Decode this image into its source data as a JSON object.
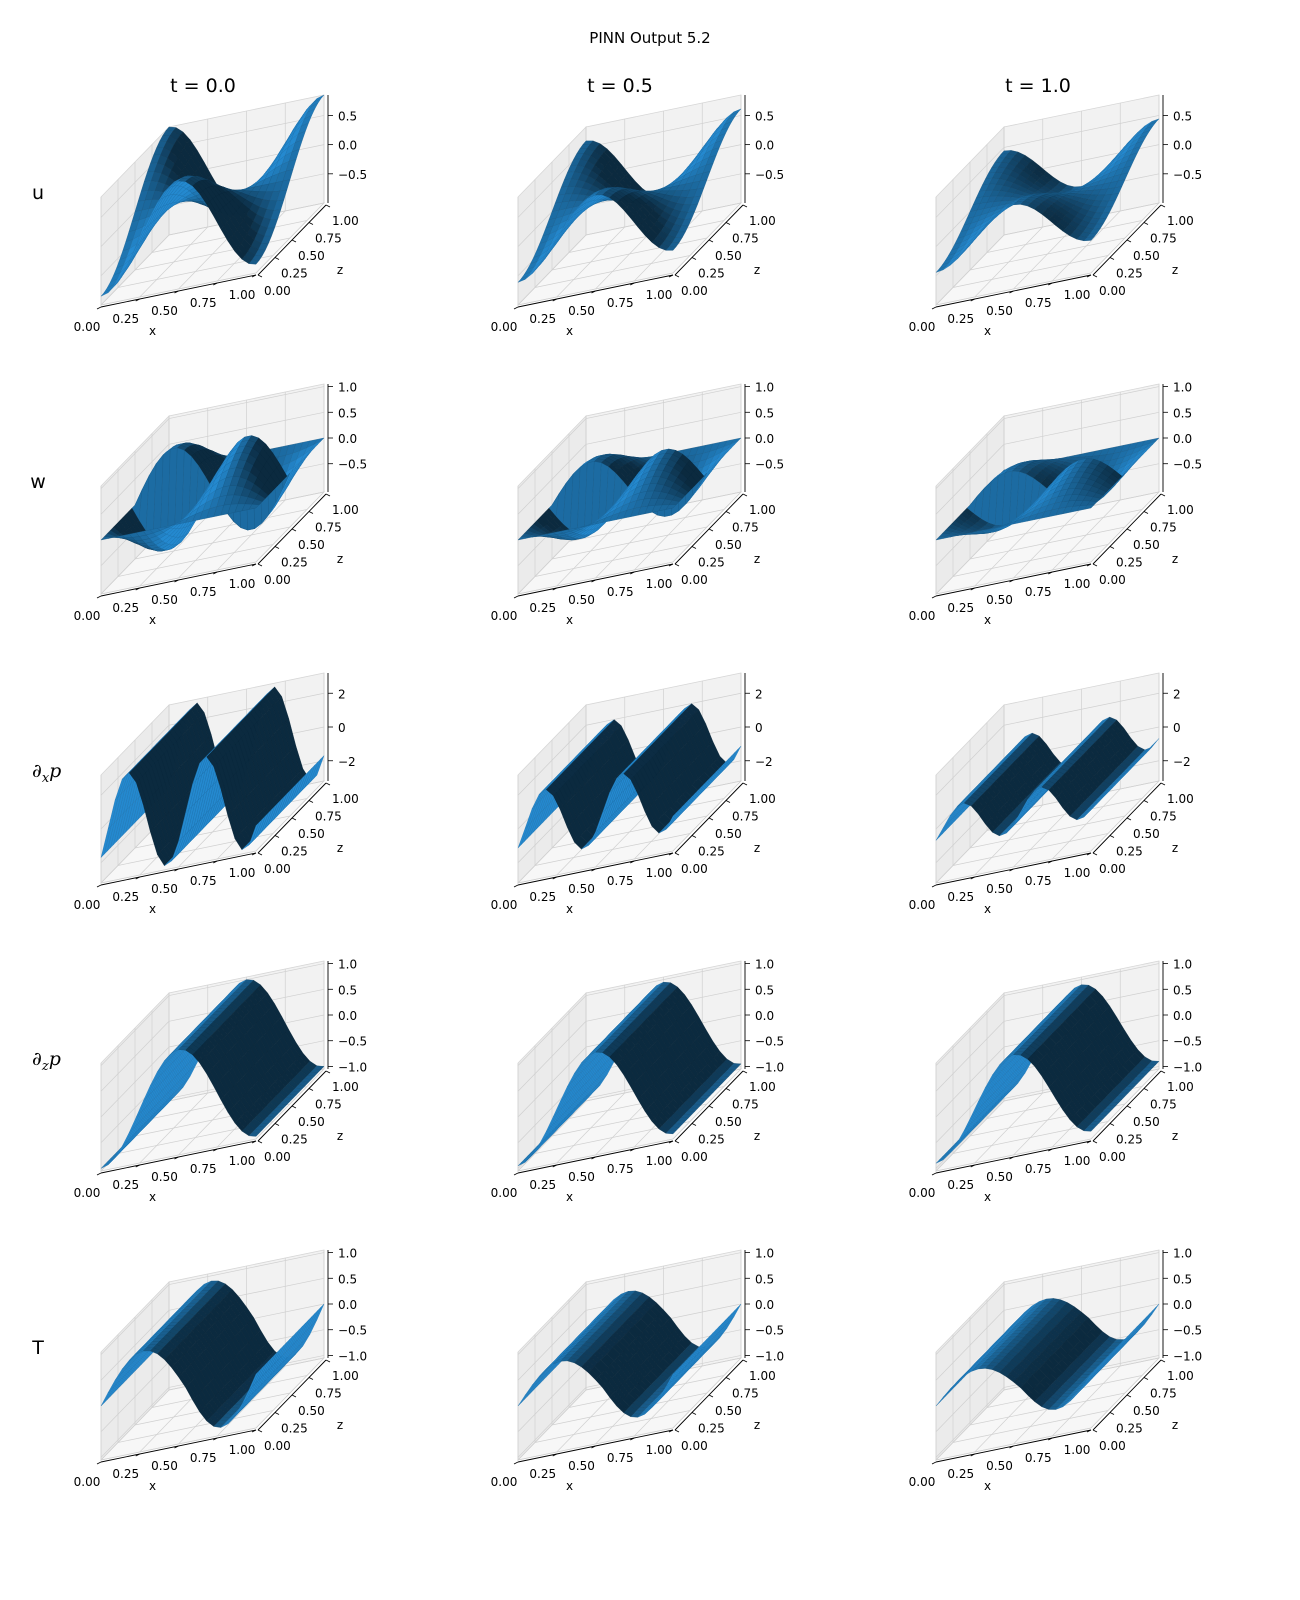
{
  "figure": {
    "title": "PINN Output 5.2",
    "surface_color": "#1f77b4",
    "columns": [
      {
        "label": "t = 0.0",
        "t": 0.0
      },
      {
        "label": "t = 0.5",
        "t": 0.5
      },
      {
        "label": "t = 1.0",
        "t": 1.0
      }
    ],
    "rows": [
      {
        "key": "u",
        "label": "u",
        "italic": false
      },
      {
        "key": "w",
        "label": "w",
        "italic": false
      },
      {
        "key": "dxp",
        "label": "∂",
        "sub": "x",
        "tail": "p",
        "italic": true
      },
      {
        "key": "dzp",
        "label": "∂",
        "sub": "z",
        "tail": "p",
        "italic": true
      },
      {
        "key": "T",
        "label": "T",
        "italic": false
      }
    ]
  },
  "chart_data": [
    {
      "row": "u",
      "type": "surface",
      "xlabel": "x",
      "ylabel": "z",
      "x_ticks": [
        "0.00",
        "0.25",
        "0.50",
        "0.75",
        "1.00"
      ],
      "y_ticks": [
        "0.00",
        "0.25",
        "0.50",
        "0.75",
        "1.00"
      ],
      "z_ticks": [
        {
          "v": 0.5,
          "label": "0.5"
        },
        {
          "v": 0.0,
          "label": "0.0"
        },
        {
          "v": -0.5,
          "label": "−0.5"
        }
      ],
      "zlim": [
        -1.0,
        0.85
      ],
      "amplitude": {
        "t=0.0": 1.0,
        "t=0.5": 0.72,
        "t=1.0": 0.52
      }
    },
    {
      "row": "w",
      "type": "surface",
      "xlabel": "x",
      "ylabel": "z",
      "x_ticks": [
        "0.00",
        "0.25",
        "0.50",
        "0.75",
        "1.00"
      ],
      "y_ticks": [
        "0.00",
        "0.25",
        "0.50",
        "0.75",
        "1.00"
      ],
      "z_ticks": [
        {
          "v": 1.0,
          "label": "1.0"
        },
        {
          "v": 0.5,
          "label": "0.5"
        },
        {
          "v": 0.0,
          "label": "0.0"
        },
        {
          "v": -0.5,
          "label": "−0.5"
        }
      ],
      "zlim": [
        -1.05,
        1.05
      ],
      "amplitude": {
        "t=0.0": 1.0,
        "t=0.5": 0.72,
        "t=1.0": 0.52
      }
    },
    {
      "row": "dxp",
      "type": "surface",
      "xlabel": "x",
      "ylabel": "z",
      "x_ticks": [
        "0.00",
        "0.25",
        "0.50",
        "0.75",
        "1.00"
      ],
      "y_ticks": [
        "0.00",
        "0.25",
        "0.50",
        "0.75",
        "1.00"
      ],
      "z_ticks": [
        {
          "v": 2,
          "label": "2"
        },
        {
          "v": 0,
          "label": "0"
        },
        {
          "v": -2,
          "label": "−2"
        }
      ],
      "zlim": [
        -3.2,
        3.2
      ],
      "amplitude": {
        "t=0.0": 3.0,
        "t=0.5": 2.0,
        "t=1.0": 1.2
      }
    },
    {
      "row": "dzp",
      "type": "surface",
      "xlabel": "x",
      "ylabel": "z",
      "x_ticks": [
        "0.00",
        "0.25",
        "0.50",
        "0.75",
        "1.00"
      ],
      "y_ticks": [
        "0.00",
        "0.25",
        "0.50",
        "0.75",
        "1.00"
      ],
      "z_ticks": [
        {
          "v": 1.0,
          "label": "1.0"
        },
        {
          "v": 0.5,
          "label": "0.5"
        },
        {
          "v": 0.0,
          "label": "0.0"
        },
        {
          "v": -0.5,
          "label": "−0.5"
        },
        {
          "v": -1.0,
          "label": "−1.0"
        }
      ],
      "zlim": [
        -1.05,
        1.05
      ],
      "amplitude": {
        "t=0.0": 1.0,
        "t=0.5": 0.95,
        "t=1.0": 0.9
      }
    },
    {
      "row": "T",
      "type": "surface",
      "xlabel": "x",
      "ylabel": "z",
      "x_ticks": [
        "0.00",
        "0.25",
        "0.50",
        "0.75",
        "1.00"
      ],
      "y_ticks": [
        "0.00",
        "0.25",
        "0.50",
        "0.75",
        "1.00"
      ],
      "z_ticks": [
        {
          "v": 1.0,
          "label": "1.0"
        },
        {
          "v": 0.5,
          "label": "0.5"
        },
        {
          "v": 0.0,
          "label": "0.0"
        },
        {
          "v": -0.5,
          "label": "−0.5"
        },
        {
          "v": -1.0,
          "label": "−1.0"
        }
      ],
      "zlim": [
        -1.05,
        1.05
      ],
      "amplitude": {
        "t=0.0": 0.9,
        "t=0.5": 0.7,
        "t=1.0": 0.55
      }
    }
  ]
}
